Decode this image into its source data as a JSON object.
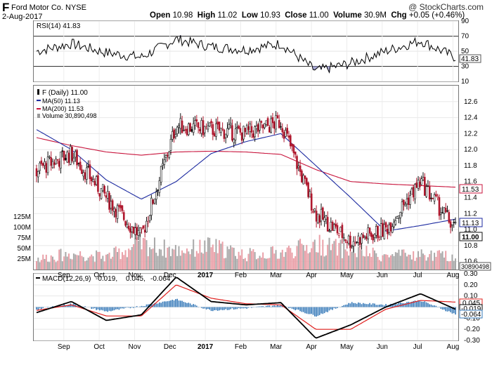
{
  "header": {
    "symbol": "F",
    "company": "Ford Motor Co.",
    "exchange": "NYSE",
    "date": "2-Aug-2017",
    "copyright": "@ StockCharts.com",
    "quote": {
      "open_label": "Open",
      "open": "10.98",
      "high_label": "High",
      "high": "11.02",
      "low_label": "Low",
      "low": "10.93",
      "close_label": "Close",
      "close": "11.00",
      "volume_label": "Volume",
      "volume": "30.9M",
      "chg_label": "Chg",
      "chg": "+0.05 (+0.46%)"
    }
  },
  "colors": {
    "up": "#111111",
    "down": "#b0182e",
    "ma50": "#1c2aa0",
    "ma200": "#c8143c",
    "vol_up": "#a9a9a9",
    "vol_down": "#eaa0a8",
    "macd_line": "#000000",
    "signal_line": "#e0201e",
    "histogram": "#3478b8",
    "rsi_line": "#000000",
    "rsi_fill": "#9999cc"
  },
  "rsi_panel": {
    "legend": "RSI(14) 41.83",
    "current_label": "41.83",
    "ticks": [
      "90",
      "70",
      "50",
      "30",
      "10"
    ]
  },
  "price_panel": {
    "legend_symbol": "F (Daily) 11.00",
    "legend_ma50": "MA(50) 11.13",
    "legend_ma200": "MA(200) 11.53",
    "legend_volume": "Volume 30,890,498",
    "ticks": [
      "12.6",
      "12.4",
      "12.2",
      "12.0",
      "11.8",
      "11.6",
      "11.4",
      "11.2",
      "11.0",
      "10.8",
      "10.6"
    ],
    "vol_ticks": [
      "125M",
      "100M",
      "75M",
      "50M",
      "25M"
    ],
    "labels_right": {
      "ma200": "11.53",
      "ma50": "11.13",
      "close": "11.00",
      "volume": "30890498"
    }
  },
  "macd_panel": {
    "legend_prefix": "MACD(12,26,9)",
    "macd_value": "-0.019,",
    "signal_value": "0.045,",
    "hist_value": "-0.064",
    "ticks": [
      "0.30",
      "0.20",
      "0.10",
      "0.00",
      "-0.10",
      "-0.20",
      "-0.30"
    ],
    "labels_right": {
      "signal": "0.045",
      "macd": "-0.019",
      "hist": "-0.064"
    }
  },
  "x_axis": [
    "Sep",
    "Oct",
    "Nov",
    "Dec",
    "2017",
    "Feb",
    "Mar",
    "Apr",
    "May",
    "Jun",
    "Jul",
    "Aug"
  ],
  "chart_data": [
    {
      "type": "line",
      "title": "RSI(14) 41.83",
      "ylim": [
        10,
        90
      ],
      "reference_lines": [
        30,
        70
      ],
      "x": [
        "Aug",
        "Sep",
        "Oct",
        "Nov",
        "Dec",
        "2017",
        "Feb",
        "Mar",
        "Apr",
        "May",
        "Jun",
        "Jul",
        "Aug"
      ],
      "series": [
        {
          "name": "RSI(14)",
          "values": [
            50,
            60,
            48,
            42,
            66,
            56,
            52,
            60,
            24,
            34,
            50,
            64,
            41.83
          ]
        }
      ]
    },
    {
      "type": "candlestick",
      "title": "F (Daily) 11.00",
      "ylim": [
        10.5,
        12.8
      ],
      "x": [
        "Aug",
        "Sep",
        "Oct",
        "Nov",
        "Dec",
        "2017",
        "Feb",
        "Mar",
        "Apr",
        "May",
        "Jun",
        "Jul",
        "Aug"
      ],
      "series": [
        {
          "name": "F (Daily)",
          "values": [
            11.75,
            11.95,
            11.4,
            10.9,
            12.3,
            12.25,
            12.2,
            12.35,
            11.2,
            10.85,
            11.0,
            11.6,
            11.0
          ]
        },
        {
          "name": "MA(50)",
          "values": [
            12.25,
            12.0,
            11.62,
            11.38,
            11.6,
            11.95,
            12.1,
            12.2,
            11.8,
            11.4,
            10.98,
            11.05,
            11.13
          ]
        },
        {
          "name": "MA(200)",
          "values": [
            12.15,
            12.05,
            11.97,
            11.93,
            11.97,
            11.98,
            11.97,
            11.94,
            11.75,
            11.6,
            11.57,
            11.55,
            11.53
          ]
        },
        {
          "name": "Volume",
          "values": [
            25,
            38,
            30,
            60,
            45,
            55,
            35,
            40,
            60,
            45,
            32,
            35,
            30.9
          ]
        }
      ]
    },
    {
      "type": "line",
      "title": "MACD(12,26,9) -0.019, 0.045, -0.064",
      "ylim": [
        -0.3,
        0.3
      ],
      "x": [
        "Aug",
        "Sep",
        "Oct",
        "Nov",
        "Dec",
        "2017",
        "Feb",
        "Mar",
        "Apr",
        "May",
        "Jun",
        "Jul",
        "Aug"
      ],
      "series": [
        {
          "name": "MACD",
          "values": [
            -0.05,
            0.05,
            -0.12,
            -0.07,
            0.27,
            0.05,
            0.02,
            0.04,
            -0.28,
            -0.16,
            0.0,
            0.12,
            -0.019
          ]
        },
        {
          "name": "Signal",
          "values": [
            -0.03,
            0.02,
            -0.08,
            -0.08,
            0.2,
            0.08,
            0.03,
            0.02,
            -0.2,
            -0.2,
            -0.02,
            0.06,
            0.045
          ]
        },
        {
          "name": "Histogram",
          "values": [
            -0.02,
            0.03,
            -0.04,
            0.01,
            0.07,
            -0.03,
            -0.01,
            0.02,
            -0.08,
            0.04,
            0.02,
            0.06,
            -0.064
          ]
        }
      ]
    }
  ]
}
